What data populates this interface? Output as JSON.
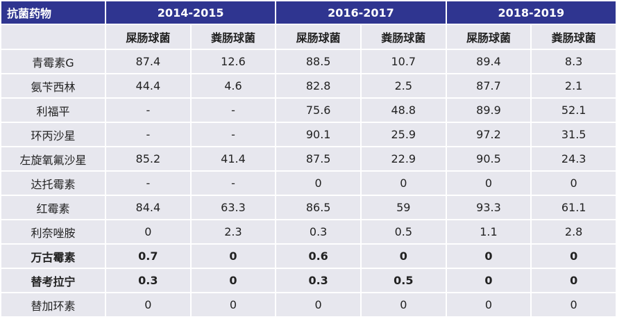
{
  "table": {
    "corner": "抗菌药物",
    "periods": [
      "2014-2015",
      "2016-2017",
      "2018-2019"
    ],
    "subheaders": [
      "屎肠球菌",
      "粪肠球菌",
      "屎肠球菌",
      "粪肠球菌",
      "屎肠球菌",
      "粪肠球菌"
    ],
    "rows": [
      {
        "drug": "青霉素G",
        "bold": false,
        "values": [
          87.4,
          12.6,
          88.5,
          10.7,
          89.4,
          8.3
        ]
      },
      {
        "drug": "氨苄西林",
        "bold": false,
        "values": [
          44.4,
          4.6,
          82.8,
          2.5,
          87.7,
          2.1
        ]
      },
      {
        "drug": "利福平",
        "bold": false,
        "values": [
          "-",
          "-",
          75.6,
          48.8,
          89.9,
          52.1
        ]
      },
      {
        "drug": "环丙沙星",
        "bold": false,
        "values": [
          "-",
          "-",
          90.1,
          25.9,
          97.2,
          31.5
        ]
      },
      {
        "drug": "左旋氧氟沙星",
        "bold": false,
        "values": [
          85.2,
          41.4,
          87.5,
          22.9,
          90.5,
          24.3
        ]
      },
      {
        "drug": "达托霉素",
        "bold": false,
        "values": [
          "-",
          "-",
          0,
          0,
          0,
          0
        ]
      },
      {
        "drug": "红霉素",
        "bold": false,
        "values": [
          84.4,
          63.3,
          86.5,
          59,
          93.3,
          61.1
        ]
      },
      {
        "drug": "利奈唑胺",
        "bold": false,
        "values": [
          0,
          2.3,
          0.3,
          0.5,
          1.1,
          2.8
        ]
      },
      {
        "drug": "万古霉素",
        "bold": true,
        "values": [
          0.7,
          0,
          0.6,
          0,
          0,
          0
        ]
      },
      {
        "drug": "替考拉宁",
        "bold": true,
        "values": [
          0.3,
          0,
          0.3,
          0.5,
          0,
          0
        ]
      },
      {
        "drug": "替加环素",
        "bold": false,
        "values": [
          0,
          0,
          0,
          0,
          0,
          0
        ]
      }
    ]
  }
}
